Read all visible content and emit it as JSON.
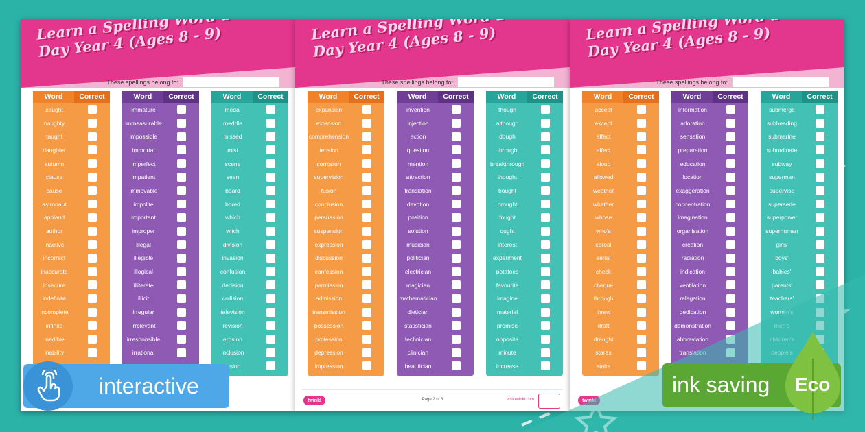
{
  "pages": [
    {
      "title": "Learn a Spelling Word a Day Year 4 (Ages 8 - 9)",
      "belong_label": "These spellings belong to:",
      "footer": {
        "page": "",
        "visit": "",
        "logo": ""
      },
      "columns": [
        {
          "color": "orange",
          "word_header": "Word",
          "correct_header": "Correct",
          "words": [
            "caught",
            "naughty",
            "taught",
            "daughter",
            "autumn",
            "clause",
            "cause",
            "astronaut",
            "applaud",
            "author",
            "inactive",
            "incorrect",
            "inaccurate",
            "insecure",
            "indefinite",
            "incomplete",
            "infinite",
            "inedible",
            "inability"
          ]
        },
        {
          "color": "purple",
          "word_header": "Word",
          "correct_header": "Correct",
          "words": [
            "immature",
            "immeasurable",
            "impossible",
            "immortal",
            "imperfect",
            "impatient",
            "immovable",
            "impolite",
            "important",
            "improper",
            "illegal",
            "illegible",
            "illogical",
            "illiterate",
            "illicit",
            "irregular",
            "irrelevant",
            "irresponsible",
            "irrational"
          ]
        },
        {
          "color": "teal",
          "word_header": "Word",
          "correct_header": "Correct",
          "words": [
            "medal",
            "meddle",
            "missed",
            "mist",
            "scene",
            "seen",
            "board",
            "bored",
            "which",
            "witch",
            "division",
            "invasion",
            "confusion",
            "decision",
            "collision",
            "television",
            "revision",
            "erosion",
            "inclusion",
            "fusion"
          ]
        }
      ]
    },
    {
      "title": "Learn a Spelling Word a Day Year 4 (Ages 8 - 9)",
      "belong_label": "These spellings belong to:",
      "footer": {
        "page": "Page 2 of 3",
        "visit": "visit twinkl.com",
        "logo": "twinkl"
      },
      "columns": [
        {
          "color": "orange",
          "word_header": "Word",
          "correct_header": "Correct",
          "words": [
            "expansion",
            "extension",
            "comprehension",
            "tension",
            "corrosion",
            "supervision",
            "fusion",
            "conclusion",
            "persuasion",
            "suspension",
            "expression",
            "discussion",
            "confession",
            "permission",
            "admission",
            "transmission",
            "possession",
            "profession",
            "depression",
            "impression"
          ]
        },
        {
          "color": "purple",
          "word_header": "Word",
          "correct_header": "Correct",
          "words": [
            "invention",
            "injection",
            "action",
            "question",
            "mention",
            "attraction",
            "translation",
            "devotion",
            "position",
            "solution",
            "musician",
            "politician",
            "electrician",
            "magician",
            "mathematician",
            "dietician",
            "statistician",
            "technician",
            "clinician",
            "beautician"
          ]
        },
        {
          "color": "teal",
          "word_header": "Word",
          "correct_header": "Correct",
          "words": [
            "though",
            "although",
            "dough",
            "through",
            "breakthrough",
            "thought",
            "bought",
            "brought",
            "fought",
            "ought",
            "interest",
            "experiment",
            "potatoes",
            "favourite",
            "imagine",
            "material",
            "promise",
            "opposite",
            "minute",
            "increase"
          ]
        }
      ]
    },
    {
      "title": "Learn a Spelling Word a Day Year 4 (Ages 8 - 9)",
      "belong_label": "These spellings belong to:",
      "footer": {
        "page": "",
        "visit": "",
        "logo": "twinkl"
      },
      "columns": [
        {
          "color": "orange",
          "word_header": "Word",
          "correct_header": "Correct",
          "words": [
            "accept",
            "except",
            "affect",
            "effect",
            "aloud",
            "allowed",
            "weather",
            "whether",
            "whose",
            "who's",
            "cereal",
            "serial",
            "check",
            "cheque",
            "through",
            "threw",
            "draft",
            "draught",
            "stares",
            "stairs"
          ]
        },
        {
          "color": "purple",
          "word_header": "Word",
          "correct_header": "Correct",
          "words": [
            "information",
            "adoration",
            "sensation",
            "preparation",
            "education",
            "location",
            "exaggeration",
            "concentration",
            "imagination",
            "organisation",
            "creation",
            "radiation",
            "indication",
            "ventilation",
            "relegation",
            "dedication",
            "demonstration",
            "abbreviation",
            "translation"
          ]
        },
        {
          "color": "teal",
          "word_header": "Word",
          "correct_header": "Correct",
          "words": [
            "submerge",
            "subheading",
            "submarine",
            "subordinate",
            "subway",
            "superman",
            "supervise",
            "supersede",
            "superpower",
            "superhuman",
            "girls'",
            "boys'",
            "babies'",
            "parents'",
            "teachers'",
            "women's",
            "men's",
            "children's",
            "people's"
          ]
        }
      ]
    }
  ],
  "badges": {
    "interactive_label": "interactive",
    "ink_saving_label": "ink saving",
    "eco_label": "Eco"
  },
  "icons": [
    "touch-hand-icon",
    "eco-drop-icon",
    "star-icon"
  ],
  "colors": {
    "pink": "#e2378c",
    "teal_bg": "#2bb3a8",
    "blue_badge": "#4ea7e6",
    "green_badge": "#5aa733"
  }
}
